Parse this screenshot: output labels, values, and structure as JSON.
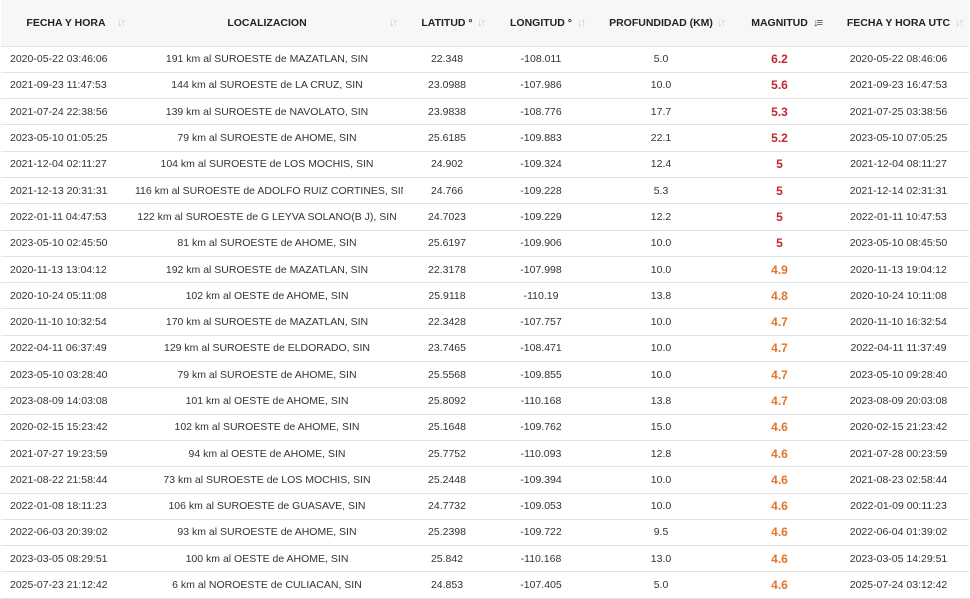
{
  "headers": [
    {
      "label": "FECHA Y HORA",
      "sort_icon": "sort-icon"
    },
    {
      "label": "LOCALIZACION",
      "sort_icon": "sort-icon"
    },
    {
      "label": "LATITUD °",
      "sort_icon": "sort-icon"
    },
    {
      "label": "LONGITUD °",
      "sort_icon": "sort-icon"
    },
    {
      "label": "PROFUNDIDAD (KM)",
      "sort_icon": "sort-icon"
    },
    {
      "label": "MAGNITUD",
      "sort_icon": "sort-desc-icon"
    },
    {
      "label": "FECHA Y HORA UTC",
      "sort_icon": "sort-icon"
    }
  ],
  "colors": {
    "mag_high": "#c0282e",
    "mag_mid": "#e0752b"
  },
  "rows": [
    [
      "2020-05-22  03:46:06",
      "191 km al SUROESTE de MAZATLAN, SIN",
      "22.348",
      "-108.011",
      "5.0",
      "6.2",
      "2020-05-22  08:46:06"
    ],
    [
      "2021-09-23  11:47:53",
      "144 km al SUROESTE de LA CRUZ, SIN",
      "23.0988",
      "-107.986",
      "10.0",
      "5.6",
      "2021-09-23  16:47:53"
    ],
    [
      "2021-07-24  22:38:56",
      "139 km al SUROESTE de NAVOLATO, SIN",
      "23.9838",
      "-108.776",
      "17.7",
      "5.3",
      "2021-07-25  03:38:56"
    ],
    [
      "2023-05-10  01:05:25",
      "79 km al SUROESTE de AHOME, SIN",
      "25.6185",
      "-109.883",
      "22.1",
      "5.2",
      "2023-05-10  07:05:25"
    ],
    [
      "2021-12-04  02:11:27",
      "104 km al SUROESTE de LOS MOCHIS, SIN",
      "24.902",
      "-109.324",
      "12.4",
      "5",
      "2021-12-04  08:11:27"
    ],
    [
      "2021-12-13  20:31:31",
      "116 km al SUROESTE de ADOLFO RUIZ CORTINES, SIN",
      "24.766",
      "-109.228",
      "5.3",
      "5",
      "2021-12-14  02:31:31"
    ],
    [
      "2022-01-11  04:47:53",
      "122 km al SUROESTE de G LEYVA SOLANO(B J), SIN",
      "24.7023",
      "-109.229",
      "12.2",
      "5",
      "2022-01-11  10:47:53"
    ],
    [
      "2023-05-10  02:45:50",
      "81 km al SUROESTE de AHOME, SIN",
      "25.6197",
      "-109.906",
      "10.0",
      "5",
      "2023-05-10  08:45:50"
    ],
    [
      "2020-11-13  13:04:12",
      "192 km al SUROESTE de MAZATLAN, SIN",
      "22.3178",
      "-107.998",
      "10.0",
      "4.9",
      "2020-11-13  19:04:12"
    ],
    [
      "2020-10-24  05:11:08",
      "102 km al OESTE de AHOME, SIN",
      "25.9118",
      "-110.19",
      "13.8",
      "4.8",
      "2020-10-24  10:11:08"
    ],
    [
      "2020-11-10  10:32:54",
      "170 km al SUROESTE de MAZATLAN, SIN",
      "22.3428",
      "-107.757",
      "10.0",
      "4.7",
      "2020-11-10  16:32:54"
    ],
    [
      "2022-04-11  06:37:49",
      "129 km al SUROESTE de ELDORADO, SIN",
      "23.7465",
      "-108.471",
      "10.0",
      "4.7",
      "2022-04-11  11:37:49"
    ],
    [
      "2023-05-10  03:28:40",
      "79 km al SUROESTE de AHOME, SIN",
      "25.5568",
      "-109.855",
      "10.0",
      "4.7",
      "2023-05-10  09:28:40"
    ],
    [
      "2023-08-09  14:03:08",
      "101 km al OESTE de AHOME, SIN",
      "25.8092",
      "-110.168",
      "13.8",
      "4.7",
      "2023-08-09  20:03:08"
    ],
    [
      "2020-02-15  15:23:42",
      "102 km al SUROESTE de AHOME, SIN",
      "25.1648",
      "-109.762",
      "15.0",
      "4.6",
      "2020-02-15  21:23:42"
    ],
    [
      "2021-07-27  19:23:59",
      "94 km al OESTE de AHOME, SIN",
      "25.7752",
      "-110.093",
      "12.8",
      "4.6",
      "2021-07-28  00:23:59"
    ],
    [
      "2021-08-22  21:58:44",
      "73 km al SUROESTE de LOS MOCHIS, SIN",
      "25.2448",
      "-109.394",
      "10.0",
      "4.6",
      "2021-08-23  02:58:44"
    ],
    [
      "2022-01-08  18:11:23",
      "106 km al SUROESTE de GUASAVE, SIN",
      "24.7732",
      "-109.053",
      "10.0",
      "4.6",
      "2022-01-09  00:11:23"
    ],
    [
      "2022-06-03  20:39:02",
      "93 km al SUROESTE de AHOME, SIN",
      "25.2398",
      "-109.722",
      "9.5",
      "4.6",
      "2022-06-04  01:39:02"
    ],
    [
      "2023-03-05  08:29:51",
      "100 km al OESTE de AHOME, SIN",
      "25.842",
      "-110.168",
      "13.0",
      "4.6",
      "2023-03-05  14:29:51"
    ],
    [
      "2025-07-23  21:12:42",
      "6 km al NOROESTE de CULIACAN, SIN",
      "24.853",
      "-107.405",
      "5.0",
      "4.6",
      "2025-07-24  03:12:42"
    ]
  ]
}
